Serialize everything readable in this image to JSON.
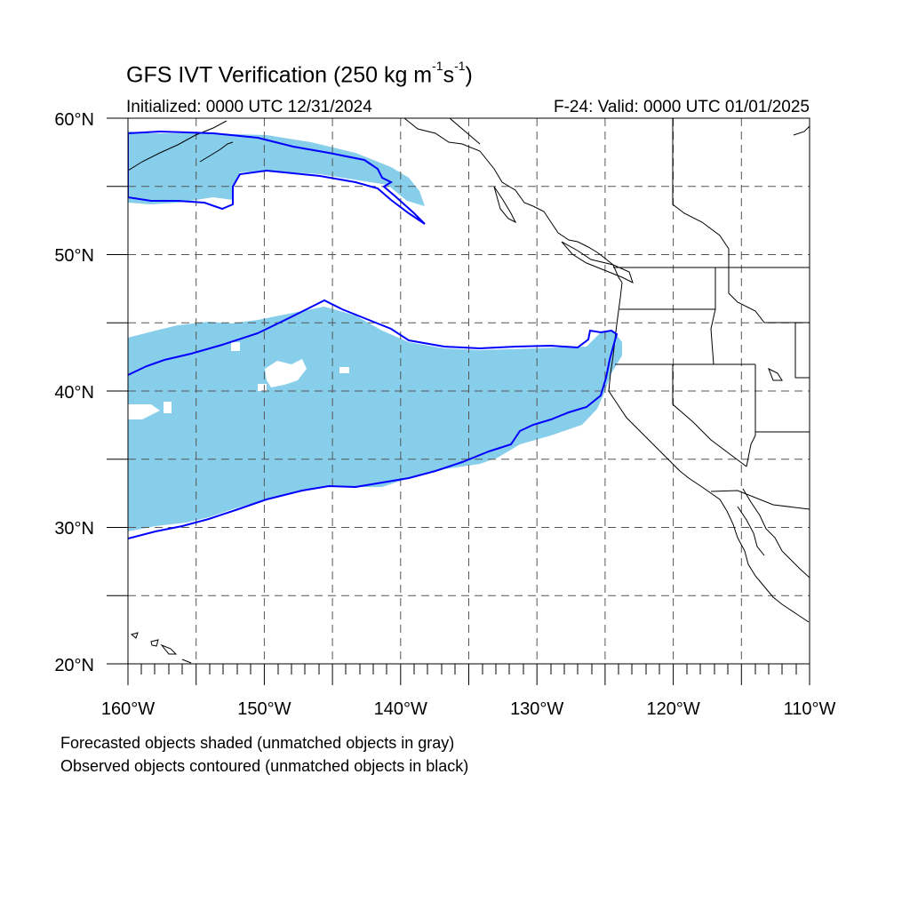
{
  "title": {
    "main": "GFS IVT Verification (250 kg m",
    "exp1": "-1",
    "mid": "s",
    "exp2": "-1",
    "end": ")"
  },
  "subtitle": {
    "initialized": "Initialized: 0000 UTC 12/31/2024",
    "valid": "F-24: Valid: 0000 UTC 01/01/2025"
  },
  "map": {
    "lon_range": [
      -160,
      -110
    ],
    "lat_range": [
      20,
      60
    ],
    "grid": "dashed every 5 degrees",
    "lat_labels": [
      "60°N",
      "50°N",
      "40°N",
      "30°N",
      "20°N"
    ],
    "lon_labels": [
      "160°W",
      "150°W",
      "140°W",
      "130°W",
      "120°W",
      "110°W"
    ],
    "forecast_fill_color": "#87ceeb",
    "observed_contour_color": "#0000ff",
    "coast_color": "#000000"
  },
  "footer": {
    "line1": "Forecasted objects shaded (unmatched objects in gray)",
    "line2": "Observed objects contoured (unmatched objects in black)"
  }
}
